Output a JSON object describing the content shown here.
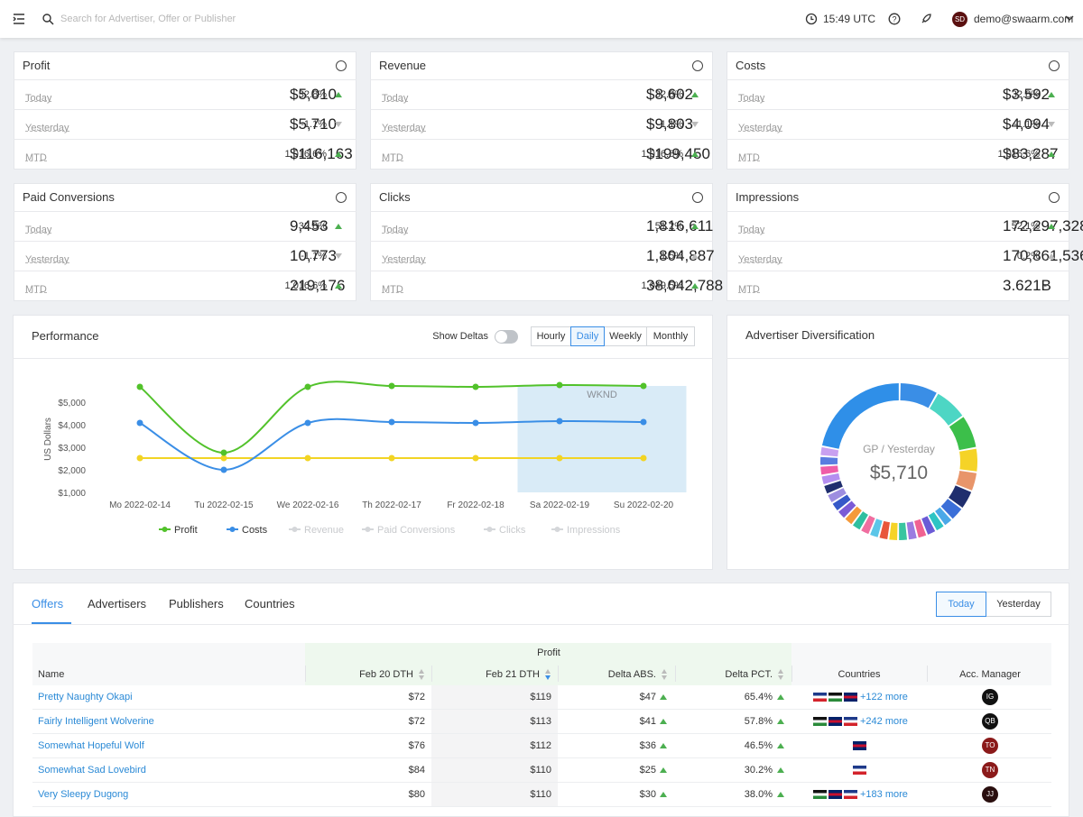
{
  "topbar": {
    "search_placeholder": "Search for Advertiser, Offer or Publisher",
    "time": "15:49 UTC",
    "avatar": "SD",
    "user": "demo@swaarm.com"
  },
  "kpis": [
    {
      "title": "Profit",
      "rows": [
        {
          "label": "Today",
          "value": "$5,010",
          "change": "32.8%",
          "trend": "up"
        },
        {
          "label": "Yesterday",
          "value": "$5,710",
          "change": "-1.1%",
          "trend": "down"
        },
        {
          "label": "MTD",
          "value": "$116,163",
          "change": "1,016.6%",
          "trend": "up"
        }
      ]
    },
    {
      "title": "Revenue",
      "rows": [
        {
          "label": "Today",
          "value": "$8,602",
          "change": "32.8%",
          "trend": "up"
        },
        {
          "label": "Yesterday",
          "value": "$9,803",
          "change": "-1.1%",
          "trend": "down"
        },
        {
          "label": "MTD",
          "value": "$199,450",
          "change": "1,016.6%",
          "trend": "up"
        }
      ]
    },
    {
      "title": "Costs",
      "rows": [
        {
          "label": "Today",
          "value": "$3,592",
          "change": "32.8%",
          "trend": "up"
        },
        {
          "label": "Yesterday",
          "value": "$4,094",
          "change": "-1.1%",
          "trend": "down"
        },
        {
          "label": "MTD",
          "value": "$83,287",
          "change": "1,016.6%",
          "trend": "up"
        }
      ]
    },
    {
      "title": "Paid Conversions",
      "rows": [
        {
          "label": "Today",
          "value": "9,453",
          "change": "32.8%",
          "trend": "up"
        },
        {
          "label": "Yesterday",
          "value": "10,773",
          "change": "-1.1%",
          "trend": "down"
        },
        {
          "label": "MTD",
          "value": "219,176",
          "change": "1,016.6%",
          "trend": "up"
        }
      ]
    },
    {
      "title": "Clicks",
      "rows": [
        {
          "label": "Today",
          "value": "1,816,611",
          "change": "51.2%",
          "trend": "up"
        },
        {
          "label": "Yesterday",
          "value": "1,804,887",
          "change": "1.5%",
          "trend": "flat"
        },
        {
          "label": "MTD",
          "value": "38,042,788",
          "change": "1,049.5%",
          "trend": "up"
        }
      ]
    },
    {
      "title": "Impressions",
      "rows": [
        {
          "label": "Today",
          "value": "172,297,328",
          "change": "52.1%",
          "trend": "up"
        },
        {
          "label": "Yesterday",
          "value": "170,861,536",
          "change": "0.2%",
          "trend": "flat"
        },
        {
          "label": "MTD",
          "value": "3.621B",
          "change": "-",
          "trend": "none"
        }
      ]
    }
  ],
  "performance": {
    "type": "line",
    "title": "Performance",
    "toggle_label": "Show Deltas",
    "intervals": [
      "Hourly",
      "Daily",
      "Weekly",
      "Monthly"
    ],
    "active_interval": 1,
    "y_label": "US Dollars",
    "categories": [
      "Mo 2022-02-14",
      "Tu 2022-02-15",
      "We 2022-02-16",
      "Th 2022-02-17",
      "Fr 2022-02-18",
      "Sa 2022-02-19",
      "Su 2022-02-20"
    ],
    "series": [
      {
        "name": "Profit",
        "color": "#52c22b",
        "values": [
          5680,
          2760,
          5680,
          5720,
          5680,
          5760,
          5720
        ]
      },
      {
        "name": "Costs",
        "color": "#3a8ee6",
        "values": [
          4080,
          2000,
          4080,
          4120,
          4080,
          4160,
          4120
        ]
      },
      {
        "color": "#f2d424",
        "values": [
          2520,
          2520,
          2520,
          2520,
          2520,
          2520,
          2520
        ]
      }
    ],
    "inactive_series": [
      "Revenue",
      "Paid Conversions",
      "Clicks",
      "Impressions"
    ],
    "annotation": "WKND",
    "ylim": [
      1000,
      6000
    ],
    "yticks": [
      {
        "value": 1000,
        "label": "$1,000"
      },
      {
        "value": 2000,
        "label": "$2,000"
      },
      {
        "value": 3000,
        "label": "$3,000"
      },
      {
        "value": 4000,
        "label": "$4,000"
      },
      {
        "value": 5000,
        "label": "$5,000"
      }
    ]
  },
  "diversification": {
    "type": "donut",
    "title": "Advertiser Diversification",
    "center_label": "GP / Yesterday",
    "center_value": "$5,710",
    "values": [
      8,
      7,
      7,
      5,
      4,
      4,
      3,
      2,
      2,
      2,
      2,
      2,
      2,
      2,
      2,
      2,
      2,
      2,
      2,
      2,
      2,
      2,
      2,
      2,
      2,
      2,
      2,
      22
    ],
    "colors": [
      "#3a8ee6",
      "#4dd6c4",
      "#3cbf4a",
      "#f5d327",
      "#e8956a",
      "#1f2e6e",
      "#3b6fd8",
      "#4aa8e8",
      "#2ec4c4",
      "#6b5bd6",
      "#f06292",
      "#9c7be0",
      "#39c5a0",
      "#f5d327",
      "#e8563a",
      "#5cc6e8",
      "#f06ea0",
      "#2fbf9f",
      "#f59a3a",
      "#7b5bd6",
      "#3558c8",
      "#9d8ee0",
      "#1f2e6e",
      "#b48ef0",
      "#ef5da8",
      "#5a7de0",
      "#c9a0f0",
      "#2f8fe8"
    ]
  },
  "tabs": [
    "Offers",
    "Advertisers",
    "Publishers",
    "Countries"
  ],
  "active_tab": 0,
  "periods": [
    "Today",
    "Yesterday"
  ],
  "active_period": 0,
  "table": {
    "group_header": "Profit",
    "columns": [
      "Name",
      "Feb 20 DTH",
      "Feb 21 DTH",
      "Delta ABS.",
      "Delta PCT.",
      "Countries",
      "Acc. Manager"
    ],
    "sort": {
      "column": 2,
      "direction": "desc"
    },
    "rows": [
      {
        "name": "Pretty Naughty Okapi",
        "feb20": "$72",
        "feb21": "$119",
        "delta_abs": "$47",
        "delta_pct": "65.4%",
        "flags": 3,
        "more": "+122 more",
        "manager": "IG",
        "manager_color": "#111111"
      },
      {
        "name": "Fairly Intelligent Wolverine",
        "feb20": "$72",
        "feb21": "$113",
        "delta_abs": "$41",
        "delta_pct": "57.8%",
        "flags": 3,
        "more": "+242 more",
        "manager": "QB",
        "manager_color": "#111111"
      },
      {
        "name": "Somewhat Hopeful Wolf",
        "feb20": "$76",
        "feb21": "$112",
        "delta_abs": "$36",
        "delta_pct": "46.5%",
        "flags": 1,
        "manager": "TO",
        "manager_color": "#8b1a1a"
      },
      {
        "name": "Somewhat Sad Lovebird",
        "feb20": "$84",
        "feb21": "$110",
        "delta_abs": "$25",
        "delta_pct": "30.2%",
        "flags": 1,
        "manager": "TN",
        "manager_color": "#8b1a1a"
      },
      {
        "name": "Very Sleepy Dugong",
        "feb20": "$80",
        "feb21": "$110",
        "delta_abs": "$30",
        "delta_pct": "38.0%",
        "flags": 3,
        "more": "+183 more",
        "manager": "JJ",
        "manager_color": "#2a0f0f"
      }
    ]
  }
}
